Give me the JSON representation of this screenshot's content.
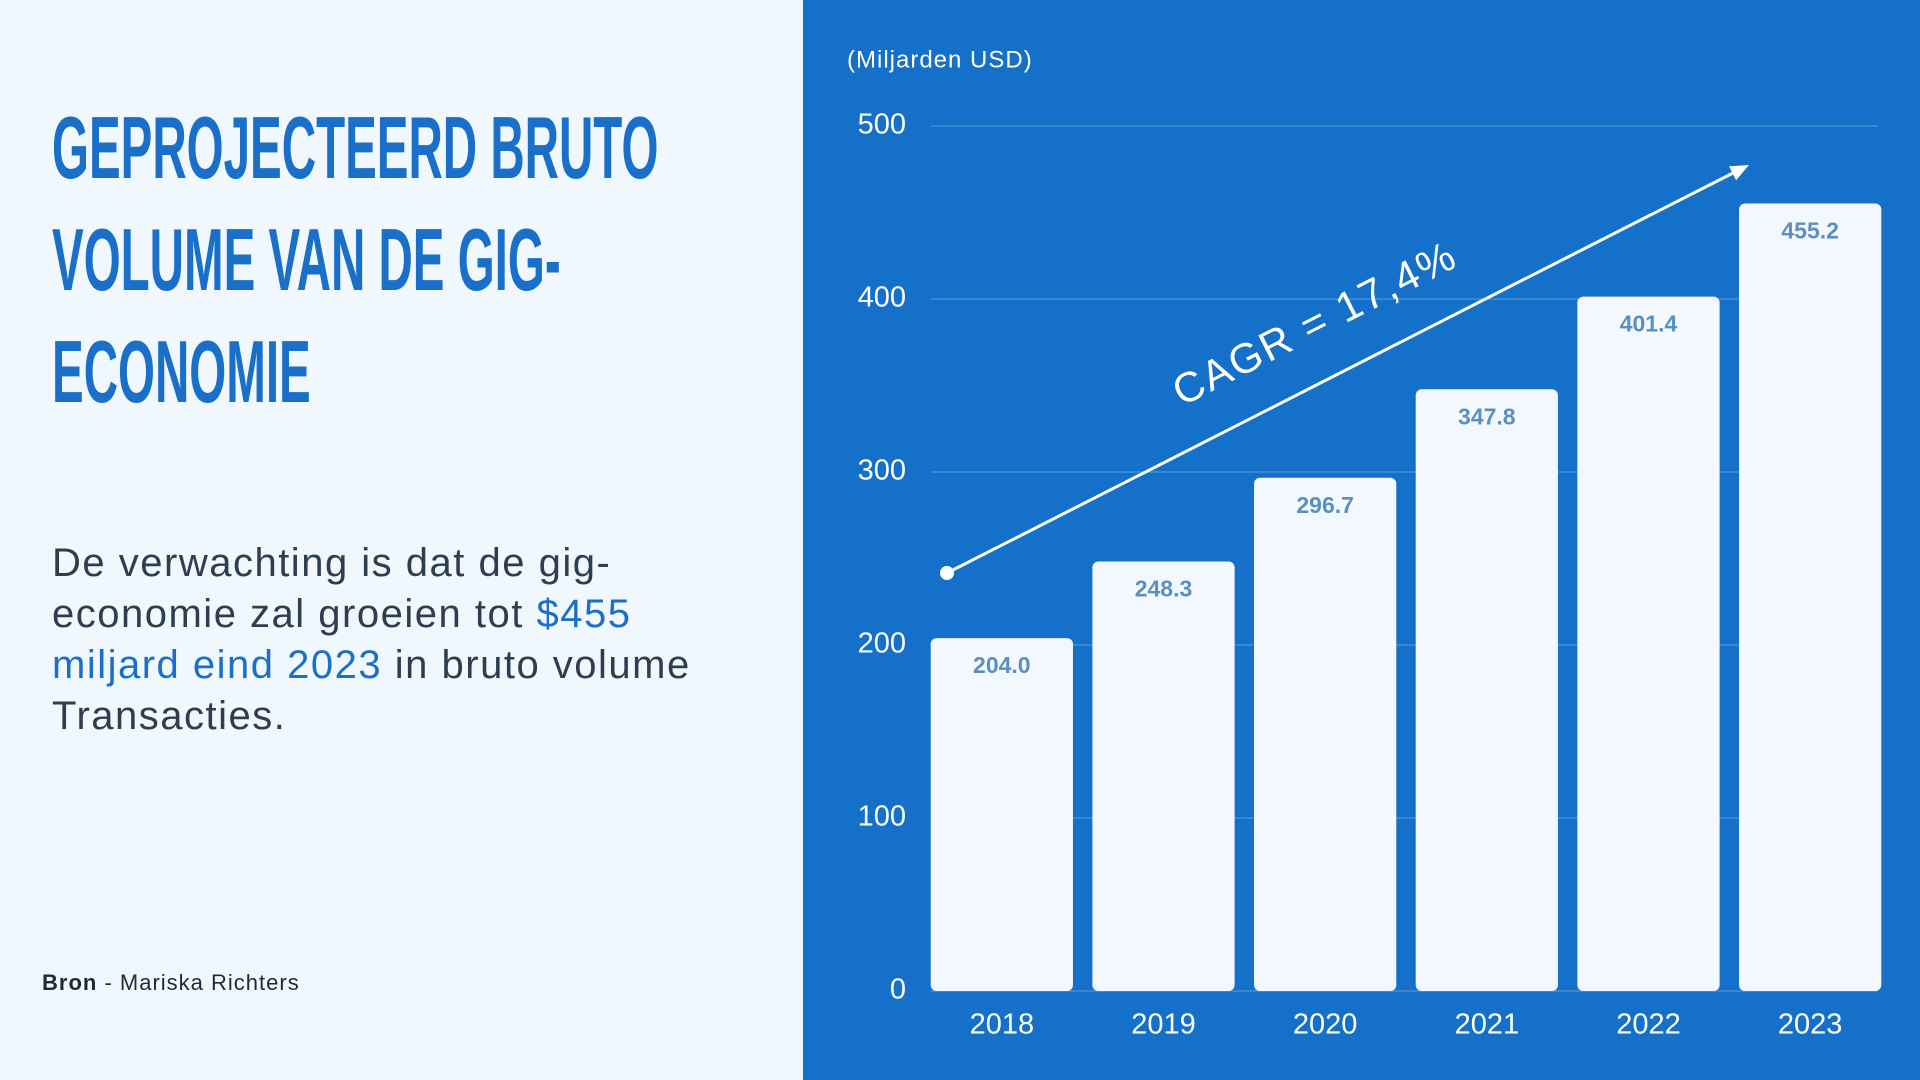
{
  "chart_data": {
    "type": "bar",
    "title": "GEPROJECTEERD BRUTO VOLUME VAN DE GIG-ECONOMIE",
    "y_axis_label": "(Miljarden USD)",
    "annotation": "CAGR = 17,4%",
    "categories": [
      "2018",
      "2019",
      "2020",
      "2021",
      "2022",
      "2023"
    ],
    "values": [
      204,
      248.3,
      296.7,
      347.8,
      401.4,
      455.2
    ],
    "value_labels": [
      "204.0",
      "248.3",
      "296.7",
      "347.8",
      "401.4",
      "455.2"
    ],
    "color": "#f3f8fe",
    "ylim": [
      0,
      500
    ],
    "yticks": [
      0,
      100,
      200,
      300,
      400,
      500
    ],
    "grid": true
  },
  "description": [
    "De verwachting is dat de gig-economie zal groeien tot",
    "$455 miljard eind 2023",
    "in bruto volume Transacties."
  ],
  "source_label": "Bron",
  "source": "- Mariska Richters"
}
